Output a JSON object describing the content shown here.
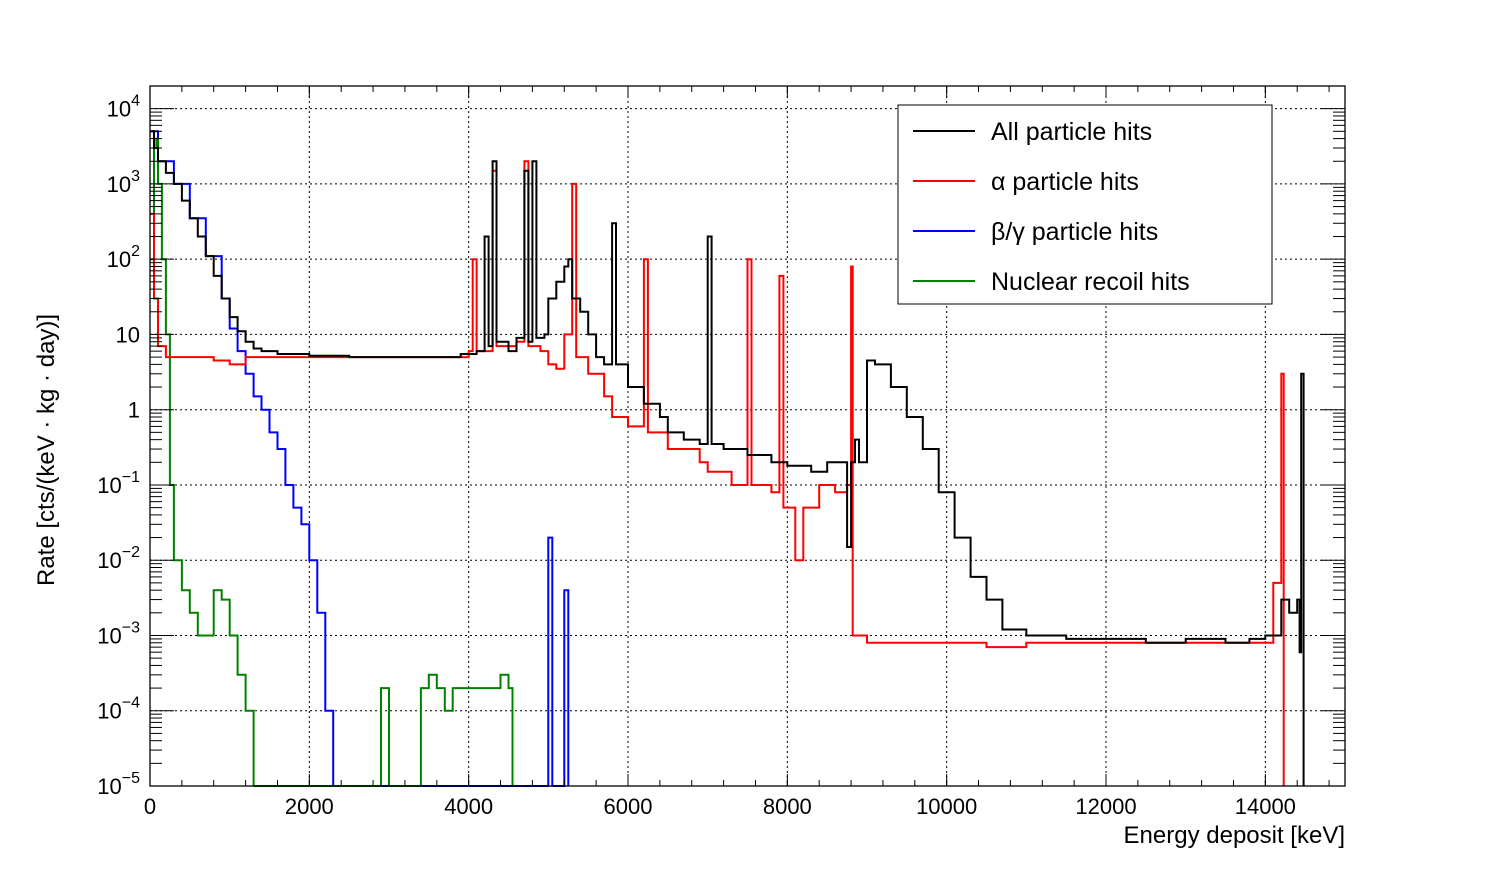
{
  "chart_data": {
    "type": "line",
    "title": "",
    "xlabel": "Energy deposit [keV]",
    "ylabel": "Rate [cts/(keV · kg · day)]",
    "xlim": [
      0,
      15000
    ],
    "ylim": [
      1e-05,
      20000
    ],
    "yscale": "log",
    "grid": true,
    "legend_position": "top-right",
    "x_ticks": [
      {
        "v": 0,
        "label": "0"
      },
      {
        "v": 2000,
        "label": "2000"
      },
      {
        "v": 4000,
        "label": "4000"
      },
      {
        "v": 6000,
        "label": "6000"
      },
      {
        "v": 8000,
        "label": "8000"
      },
      {
        "v": 10000,
        "label": "10000"
      },
      {
        "v": 12000,
        "label": "12000"
      },
      {
        "v": 14000,
        "label": "14000"
      }
    ],
    "y_ticks": [
      {
        "exp": 4,
        "base": "10",
        "sup": "4"
      },
      {
        "exp": 3,
        "base": "10",
        "sup": "3"
      },
      {
        "exp": 2,
        "base": "10",
        "sup": "2"
      },
      {
        "exp": 1,
        "base": "10",
        "sup": ""
      },
      {
        "exp": 0,
        "base": "1",
        "sup": ""
      },
      {
        "exp": -1,
        "base": "10",
        "sup": "−1"
      },
      {
        "exp": -2,
        "base": "10",
        "sup": "−2"
      },
      {
        "exp": -3,
        "base": "10",
        "sup": "−3"
      },
      {
        "exp": -4,
        "base": "10",
        "sup": "−4"
      },
      {
        "exp": -5,
        "base": "10",
        "sup": "−5"
      }
    ],
    "series": [
      {
        "name": "All particle hits",
        "color": "#000000",
        "points": [
          [
            0,
            5000
          ],
          [
            50,
            3000
          ],
          [
            100,
            2000
          ],
          [
            200,
            1400
          ],
          [
            300,
            1000
          ],
          [
            400,
            600
          ],
          [
            500,
            350
          ],
          [
            600,
            200
          ],
          [
            700,
            110
          ],
          [
            800,
            60
          ],
          [
            900,
            30
          ],
          [
            1000,
            17
          ],
          [
            1100,
            11
          ],
          [
            1200,
            8
          ],
          [
            1300,
            6.5
          ],
          [
            1400,
            6
          ],
          [
            1600,
            5.5
          ],
          [
            1800,
            5.5
          ],
          [
            2000,
            5.2
          ],
          [
            2500,
            5
          ],
          [
            3000,
            5
          ],
          [
            3500,
            5
          ],
          [
            3900,
            5.5
          ],
          [
            4000,
            5.5
          ],
          [
            4100,
            6
          ],
          [
            4200,
            200
          ],
          [
            4250,
            7
          ],
          [
            4300,
            2000
          ],
          [
            4350,
            8
          ],
          [
            4500,
            6
          ],
          [
            4600,
            9
          ],
          [
            4700,
            1500
          ],
          [
            4750,
            8
          ],
          [
            4800,
            2000
          ],
          [
            4850,
            9
          ],
          [
            4950,
            10
          ],
          [
            5000,
            30
          ],
          [
            5100,
            50
          ],
          [
            5200,
            80
          ],
          [
            5250,
            100
          ],
          [
            5300,
            30
          ],
          [
            5400,
            20
          ],
          [
            5500,
            10
          ],
          [
            5600,
            5
          ],
          [
            5700,
            4
          ],
          [
            5800,
            300
          ],
          [
            5850,
            4
          ],
          [
            6000,
            2
          ],
          [
            6200,
            1.2
          ],
          [
            6400,
            0.8
          ],
          [
            6500,
            0.5
          ],
          [
            6700,
            0.4
          ],
          [
            6900,
            0.35
          ],
          [
            7000,
            200
          ],
          [
            7050,
            0.35
          ],
          [
            7200,
            0.3
          ],
          [
            7500,
            0.25
          ],
          [
            7800,
            0.2
          ],
          [
            8000,
            0.18
          ],
          [
            8300,
            0.15
          ],
          [
            8500,
            0.2
          ],
          [
            8700,
            0.2
          ],
          [
            8750,
            0.015
          ],
          [
            8800,
            0.2
          ],
          [
            8850,
            0.4
          ],
          [
            8900,
            0.2
          ],
          [
            9000,
            4.5
          ],
          [
            9100,
            4
          ],
          [
            9300,
            2
          ],
          [
            9500,
            0.8
          ],
          [
            9700,
            0.3
          ],
          [
            9900,
            0.08
          ],
          [
            10100,
            0.02
          ],
          [
            10300,
            0.006
          ],
          [
            10500,
            0.003
          ],
          [
            10700,
            0.0012
          ],
          [
            11000,
            0.001
          ],
          [
            11500,
            0.0009
          ],
          [
            12000,
            0.0009
          ],
          [
            12500,
            0.0008
          ],
          [
            13000,
            0.0009
          ],
          [
            13500,
            0.0008
          ],
          [
            13800,
            0.0009
          ],
          [
            14000,
            0.001
          ],
          [
            14200,
            0.003
          ],
          [
            14300,
            0.002
          ],
          [
            14400,
            0.003
          ],
          [
            14430,
            0.0006
          ],
          [
            14450,
            3
          ],
          [
            14480,
            1e-05
          ]
        ]
      },
      {
        "name": "α particle hits",
        "color": "#ff0000",
        "points": [
          [
            0,
            400
          ],
          [
            50,
            30
          ],
          [
            100,
            7
          ],
          [
            200,
            5
          ],
          [
            500,
            5
          ],
          [
            800,
            4.5
          ],
          [
            1000,
            4
          ],
          [
            1200,
            5
          ],
          [
            1500,
            5
          ],
          [
            2000,
            5
          ],
          [
            2500,
            5
          ],
          [
            3000,
            5
          ],
          [
            3500,
            5
          ],
          [
            3900,
            5
          ],
          [
            4000,
            6
          ],
          [
            4050,
            100
          ],
          [
            4100,
            6
          ],
          [
            4300,
            1500
          ],
          [
            4350,
            7
          ],
          [
            4500,
            7
          ],
          [
            4600,
            8
          ],
          [
            4700,
            2000
          ],
          [
            4750,
            7
          ],
          [
            4900,
            6
          ],
          [
            5000,
            4
          ],
          [
            5100,
            3.5
          ],
          [
            5200,
            10
          ],
          [
            5300,
            1000
          ],
          [
            5350,
            5
          ],
          [
            5500,
            3
          ],
          [
            5700,
            1.5
          ],
          [
            5800,
            0.8
          ],
          [
            6000,
            0.6
          ],
          [
            6200,
            100
          ],
          [
            6250,
            0.5
          ],
          [
            6500,
            0.3
          ],
          [
            6700,
            0.3
          ],
          [
            6900,
            0.2
          ],
          [
            7000,
            0.15
          ],
          [
            7300,
            0.1
          ],
          [
            7500,
            100
          ],
          [
            7550,
            0.1
          ],
          [
            7800,
            0.08
          ],
          [
            7900,
            60
          ],
          [
            7950,
            0.05
          ],
          [
            8100,
            0.01
          ],
          [
            8200,
            0.05
          ],
          [
            8400,
            0.1
          ],
          [
            8600,
            0.08
          ],
          [
            8750,
            0.1
          ],
          [
            8800,
            80
          ],
          [
            8820,
            0.001
          ],
          [
            9000,
            0.0008
          ],
          [
            9500,
            0.0008
          ],
          [
            10000,
            0.0008
          ],
          [
            10500,
            0.0007
          ],
          [
            11000,
            0.0008
          ],
          [
            11500,
            0.0008
          ],
          [
            12000,
            0.0008
          ],
          [
            12500,
            0.0008
          ],
          [
            13000,
            0.0008
          ],
          [
            13500,
            0.0008
          ],
          [
            13800,
            0.0008
          ],
          [
            14000,
            0.0008
          ],
          [
            14100,
            0.005
          ],
          [
            14200,
            3
          ],
          [
            14230,
            1e-05
          ]
        ]
      },
      {
        "name": "β/γ particle hits",
        "color": "#0000ff",
        "points": [
          [
            0,
            5000
          ],
          [
            100,
            2000
          ],
          [
            300,
            1000
          ],
          [
            500,
            350
          ],
          [
            700,
            110
          ],
          [
            900,
            30
          ],
          [
            1000,
            12
          ],
          [
            1100,
            6
          ],
          [
            1200,
            3
          ],
          [
            1300,
            1.5
          ],
          [
            1400,
            1
          ],
          [
            1500,
            0.5
          ],
          [
            1600,
            0.3
          ],
          [
            1700,
            0.1
          ],
          [
            1800,
            0.05
          ],
          [
            1900,
            0.03
          ],
          [
            2000,
            0.01
          ],
          [
            2100,
            0.002
          ],
          [
            2200,
            0.0001
          ],
          [
            2300,
            1e-05
          ],
          [
            2500,
            1e-05
          ],
          [
            4900,
            1e-05
          ],
          [
            5000,
            0.02
          ],
          [
            5050,
            1e-05
          ],
          [
            5200,
            0.004
          ],
          [
            5250,
            1e-05
          ]
        ]
      },
      {
        "name": "Nuclear recoil hits",
        "color": "#008000",
        "points": [
          [
            0,
            100
          ],
          [
            50,
            3000
          ],
          [
            80,
            4000
          ],
          [
            100,
            1000
          ],
          [
            150,
            100
          ],
          [
            200,
            10
          ],
          [
            250,
            0.1
          ],
          [
            300,
            0.01
          ],
          [
            400,
            0.004
          ],
          [
            500,
            0.002
          ],
          [
            600,
            0.001
          ],
          [
            700,
            0.001
          ],
          [
            800,
            0.004
          ],
          [
            900,
            0.003
          ],
          [
            1000,
            0.001
          ],
          [
            1100,
            0.0003
          ],
          [
            1200,
            0.0001
          ],
          [
            1300,
            1e-05
          ],
          [
            2800,
            1e-05
          ],
          [
            2900,
            0.0002
          ],
          [
            3000,
            1e-05
          ],
          [
            3400,
            0.0002
          ],
          [
            3500,
            0.0003
          ],
          [
            3600,
            0.0002
          ],
          [
            3700,
            0.0001
          ],
          [
            3800,
            0.0002
          ],
          [
            4000,
            0.0002
          ],
          [
            4200,
            0.0002
          ],
          [
            4400,
            0.0003
          ],
          [
            4500,
            0.0002
          ],
          [
            4550,
            1e-05
          ]
        ]
      }
    ]
  }
}
